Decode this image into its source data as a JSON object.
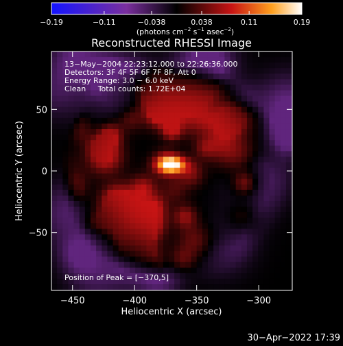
{
  "chart_data": {
    "type": "heatmap",
    "title": "Reconstructed RHESSI Image",
    "xlabel": "Heliocentric X (arcsec)",
    "ylabel": "Heliocentric Y (arcsec)",
    "xlim": [
      -467,
      -273
    ],
    "ylim": [
      -97,
      97
    ],
    "x_ticks": [
      -450,
      -400,
      -350,
      -300
    ],
    "x_tick_labels": [
      "−450",
      "−400",
      "−350",
      "−300"
    ],
    "y_ticks": [
      50,
      0,
      -50
    ],
    "y_tick_labels": [
      "50",
      "0",
      "−50"
    ],
    "colorbar": {
      "min": -0.19,
      "max": 0.19,
      "tick_values": [
        -0.19,
        -0.11,
        -0.038,
        0.038,
        0.11,
        0.19
      ],
      "tick_labels": [
        "−0.19",
        "−0.11",
        "−0.038",
        "0.038",
        "0.11",
        "0.19"
      ],
      "unit_parts": [
        "(photons cm",
        "−2",
        " s",
        "−1",
        " asec",
        "−2",
        ")"
      ]
    },
    "annotations": [
      "13−May−2004 22:23:12.000 to 22:26:36.000",
      "Detectors: 3F 4F 5F 6F 7F 8F, Att 0",
      "Energy Range: 3.0 − 6.0 keV",
      "Clean     Total counts: 1.72E+04"
    ],
    "peak_label": "Position of Peak = [−370,5]",
    "peak": [
      -370,
      5
    ],
    "peak_value": 0.19,
    "source_center": [
      -370,
      0
    ],
    "disk_radius_arcsec": 90,
    "colors": {
      "low": "#1414ff",
      "mid_low": "#7a2f9e",
      "zero": "#000000",
      "mid": "#c81414",
      "high_mid": "#ffa01e",
      "high": "#ffffff"
    }
  },
  "footer": {
    "timestamp": "30−Apr−2022 17:39"
  }
}
